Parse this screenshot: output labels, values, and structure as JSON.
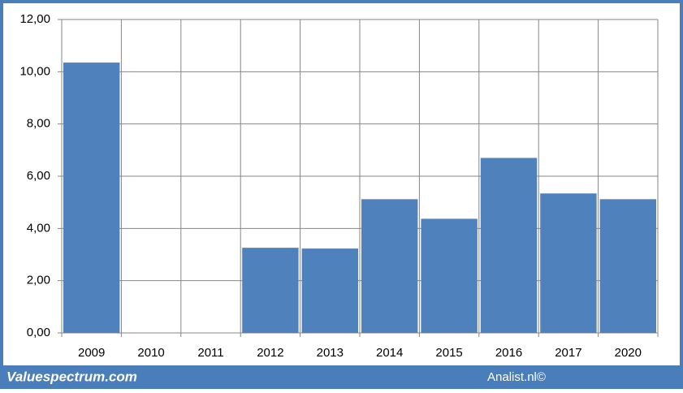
{
  "chart_data": {
    "type": "bar",
    "categories": [
      "2009",
      "2010",
      "2011",
      "2012",
      "2013",
      "2014",
      "2015",
      "2016",
      "2017",
      "2020"
    ],
    "values": [
      10.35,
      null,
      null,
      3.26,
      3.23,
      5.12,
      4.37,
      6.7,
      5.34,
      5.12
    ],
    "color": "#4f81bd",
    "ylim": [
      0,
      12
    ],
    "yticks": [
      {
        "value": 0,
        "label": "0,00"
      },
      {
        "value": 2,
        "label": "2,00"
      },
      {
        "value": 4,
        "label": "4,00"
      },
      {
        "value": 6,
        "label": "6,00"
      },
      {
        "value": 8,
        "label": "8,00"
      },
      {
        "value": 10,
        "label": "10,00"
      },
      {
        "value": 12,
        "label": "12,00"
      }
    ],
    "grid": true
  },
  "footer": {
    "left": "Valuespectrum.com",
    "right": "Analist.nl©"
  }
}
